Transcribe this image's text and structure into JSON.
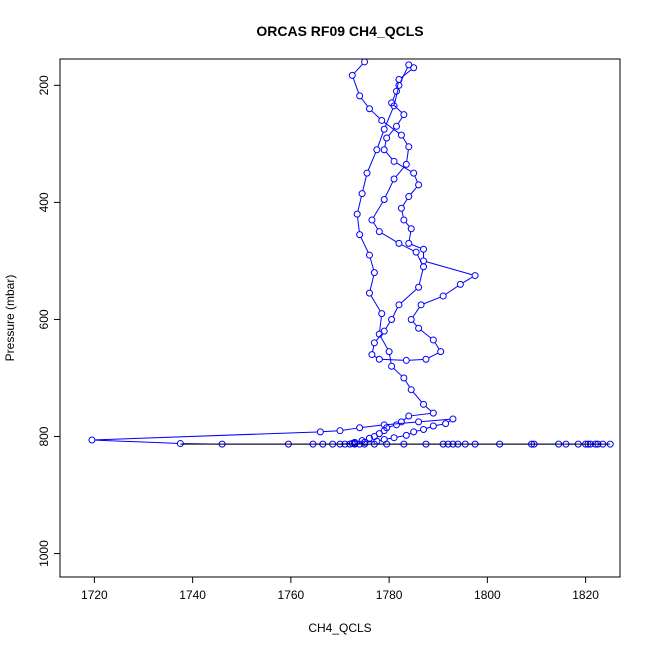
{
  "chart_data": {
    "type": "line",
    "title": "ORCAS RF09 CH4_QCLS",
    "xlabel": "CH4_QCLS",
    "ylabel": "Pressure (mbar)",
    "xlim": [
      1713,
      1827
    ],
    "ylim": [
      1040,
      155
    ],
    "y_reversed": true,
    "xticks": [
      1720,
      1740,
      1760,
      1780,
      1800,
      1820
    ],
    "yticks": [
      200,
      400,
      600,
      800,
      1000
    ],
    "grid": false,
    "legend": "none",
    "series": [
      {
        "color": "#0000ff",
        "marker": "open-circle",
        "x": [
          1775.0,
          1772.5,
          1774.0,
          1776.0,
          1778.5,
          1782.5,
          1784.0,
          1783.5,
          1781.0,
          1779.0,
          1776.5,
          1778.0,
          1782.0,
          1785.5,
          1787.0,
          1786.0,
          1782.0,
          1780.5,
          1779.0,
          1777.0,
          1776.5,
          1778.0,
          1783.5,
          1787.5,
          1790.5,
          1789.0,
          1786.0,
          1784.5,
          1786.5,
          1791.0,
          1794.5,
          1797.5,
          1787.0,
          1787.0,
          1784.0,
          1784.5,
          1783.0,
          1782.5,
          1784.0,
          1786.0,
          1785.0,
          1781.0,
          1779.0,
          1779.5,
          1781.5,
          1783.0,
          1780.5,
          1781.5,
          1782.0,
          1785.0,
          1784.0,
          1782.0,
          1781.0,
          1779.0,
          1777.5,
          1775.5,
          1774.5,
          1773.5,
          1774.0,
          1776.0,
          1777.0,
          1776.0,
          1778.5,
          1778.0,
          1780.0,
          1780.5,
          1783.0,
          1784.5,
          1787.0,
          1789.0,
          1784.0,
          1782.5,
          1781.5,
          1779.5,
          1779.0,
          1778.0,
          1777.0,
          1776.0,
          1774.5,
          1773.0,
          1772.5,
          1770.0,
          1773.0,
          1775.0,
          1777.5,
          1779.0,
          1781.0,
          1783.5,
          1785.0,
          1787.0,
          1789.0,
          1791.5,
          1793.0,
          1786.0,
          1779.0,
          1774.0,
          1770.0,
          1766.0,
          1719.5,
          1737.5,
          1746.0,
          1759.5,
          1764.5,
          1766.5,
          1768.5,
          1771.0,
          1772.0,
          1773.0,
          1774.0,
          1775.0,
          1777.0,
          1779.5,
          1783.0,
          1787.5,
          1791.0,
          1792.0,
          1793.0,
          1794.0,
          1795.5,
          1797.5,
          1802.5,
          1809.0,
          1809.5,
          1814.5,
          1816.0,
          1818.5,
          1820.0,
          1820.5,
          1821.0,
          1822.0,
          1822.5,
          1823.5,
          1825.0
        ],
        "y": [
          160,
          183,
          218,
          240,
          260,
          285,
          305,
          335,
          360,
          395,
          430,
          450,
          470,
          485,
          510,
          545,
          575,
          600,
          620,
          640,
          660,
          668,
          670,
          668,
          655,
          635,
          615,
          600,
          575,
          560,
          540,
          525,
          500,
          480,
          470,
          445,
          430,
          410,
          390,
          370,
          350,
          330,
          310,
          290,
          270,
          250,
          230,
          210,
          190,
          170,
          165,
          200,
          235,
          275,
          310,
          350,
          385,
          420,
          455,
          490,
          520,
          555,
          590,
          625,
          655,
          680,
          700,
          720,
          745,
          760,
          765,
          775,
          780,
          785,
          790,
          795,
          800,
          803,
          807,
          810,
          812,
          813,
          812,
          810,
          808,
          805,
          802,
          798,
          792,
          788,
          782,
          778,
          770,
          775,
          780,
          785,
          790,
          792,
          806,
          812,
          813,
          813,
          813,
          813,
          813,
          813,
          813,
          813,
          813,
          813,
          813,
          813,
          813,
          813,
          813,
          813,
          813,
          813,
          813,
          813,
          813,
          813,
          813,
          813,
          813,
          813,
          813,
          813,
          813,
          813,
          813,
          813,
          813
        ]
      }
    ]
  }
}
